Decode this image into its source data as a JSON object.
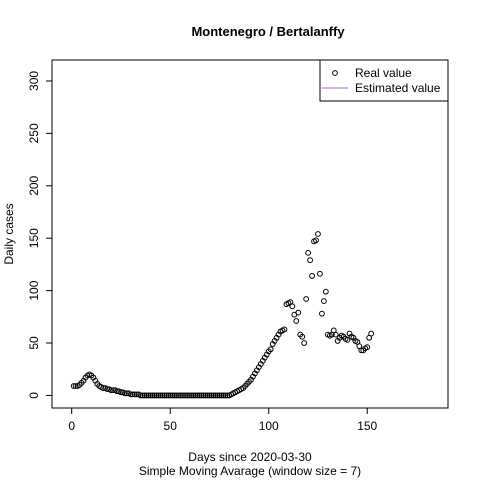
{
  "chart_data": {
    "type": "scatter",
    "title": "Montenegro / Bertalanffy",
    "x_label": "Days since 2020-03-30",
    "subtitle": "Simple Moving Avarage (window size = 7)",
    "y_label": "Daily cases",
    "xlim": [
      -10,
      191
    ],
    "ylim": [
      -12,
      320
    ],
    "xticks": [
      0,
      50,
      100,
      150
    ],
    "yticks": [
      0,
      50,
      100,
      150,
      200,
      250,
      300
    ],
    "legend": {
      "position": "topright",
      "entries": [
        {
          "name": "Real value",
          "marker": "circle",
          "color": "#000000"
        },
        {
          "name": "Estimated value",
          "marker": "line",
          "color": "#a66bbd"
        }
      ]
    },
    "series": [
      {
        "name": "Real value",
        "color": "#000000",
        "x": [
          1,
          2,
          3,
          4,
          5,
          6,
          7,
          8,
          9,
          10,
          11,
          12,
          13,
          14,
          15,
          16,
          17,
          18,
          19,
          20,
          21,
          22,
          23,
          24,
          25,
          26,
          27,
          28,
          29,
          30,
          31,
          32,
          33,
          34,
          35,
          36,
          37,
          38,
          39,
          40,
          41,
          42,
          43,
          44,
          45,
          46,
          47,
          48,
          49,
          50,
          51,
          52,
          53,
          54,
          55,
          56,
          57,
          58,
          59,
          60,
          61,
          62,
          63,
          64,
          65,
          66,
          67,
          68,
          69,
          70,
          71,
          72,
          73,
          74,
          75,
          76,
          77,
          78,
          79,
          80,
          81,
          82,
          83,
          84,
          85,
          86,
          87,
          88,
          89,
          90,
          91,
          92,
          93,
          94,
          95,
          96,
          97,
          98,
          99,
          100,
          101,
          102,
          103,
          104,
          105,
          106,
          107,
          108,
          109,
          110,
          111,
          112,
          113,
          114,
          115,
          116,
          117,
          118,
          119,
          120,
          121,
          122,
          123,
          124,
          125,
          126,
          127,
          128,
          129,
          130,
          131,
          132,
          133,
          134,
          135,
          136,
          137,
          138,
          139,
          140,
          141,
          142,
          143,
          144,
          145,
          146,
          147,
          148,
          149,
          150,
          151,
          152
        ],
        "values": [
          9,
          9,
          9,
          10,
          12,
          14,
          17,
          19,
          20,
          19,
          17,
          14,
          11,
          9,
          8,
          7,
          7,
          6,
          6,
          5,
          5,
          5,
          4,
          4,
          3,
          3,
          2,
          2,
          2,
          1,
          1,
          1,
          1,
          1,
          0,
          0,
          0,
          0,
          0,
          0,
          0,
          0,
          0,
          0,
          0,
          0,
          0,
          0,
          0,
          0,
          0,
          0,
          0,
          0,
          0,
          0,
          0,
          0,
          0,
          0,
          0,
          0,
          0,
          0,
          0,
          0,
          0,
          0,
          0,
          0,
          0,
          0,
          0,
          0,
          0,
          0,
          0,
          0,
          0,
          0,
          1,
          2,
          3,
          4,
          5,
          6,
          7,
          9,
          11,
          13,
          15,
          18,
          21,
          24,
          27,
          30,
          33,
          36,
          39,
          42,
          44,
          49,
          52,
          55,
          58,
          61,
          62,
          63,
          87,
          88,
          89,
          85,
          77,
          71,
          79,
          58,
          56,
          50,
          92,
          136,
          129,
          114,
          147,
          148,
          154,
          116,
          78,
          90,
          99,
          58,
          57,
          58,
          62,
          58,
          52,
          55,
          57,
          56,
          54,
          53,
          59,
          56,
          55,
          52,
          51,
          47,
          43,
          43,
          45,
          46,
          55,
          59
        ]
      }
    ]
  }
}
